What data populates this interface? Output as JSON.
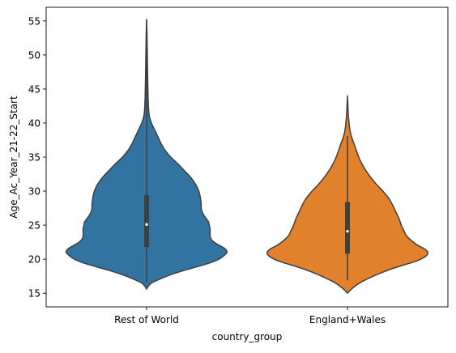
{
  "chart_data": {
    "type": "violin",
    "xlabel": "country_group",
    "ylabel": "Age_Ac_Year_21-22_Start",
    "ylim": [
      13.0,
      57.0
    ],
    "yticks": [
      15,
      20,
      25,
      30,
      35,
      40,
      45,
      50,
      55
    ],
    "ytick_labels": [
      "15",
      "20",
      "25",
      "30",
      "35",
      "40",
      "45",
      "50",
      "55"
    ],
    "grid": false,
    "categories": [
      "Rest of World",
      "England+Wales"
    ],
    "series": [
      {
        "category": "Rest of World",
        "color": "#3274a1",
        "range": [
          16.7,
          55.2
        ],
        "box": {
          "q1": 21.8,
          "median": 25.1,
          "q3": 29.4
        },
        "density_profile": [
          [
            15.6,
            0.0
          ],
          [
            16.0,
            0.02
          ],
          [
            16.5,
            0.06
          ],
          [
            17.0,
            0.15
          ],
          [
            17.5,
            0.25
          ],
          [
            18.0,
            0.37
          ],
          [
            18.5,
            0.51
          ],
          [
            19.0,
            0.66
          ],
          [
            19.5,
            0.8
          ],
          [
            20.0,
            0.9
          ],
          [
            20.5,
            0.96
          ],
          [
            21.0,
            1.0
          ],
          [
            21.5,
            0.98
          ],
          [
            22.0,
            0.91
          ],
          [
            22.5,
            0.84
          ],
          [
            23.0,
            0.8
          ],
          [
            23.5,
            0.79
          ],
          [
            24.0,
            0.79
          ],
          [
            24.5,
            0.79
          ],
          [
            25.0,
            0.78
          ],
          [
            25.5,
            0.77
          ],
          [
            26.0,
            0.74
          ],
          [
            26.5,
            0.71
          ],
          [
            27.0,
            0.69
          ],
          [
            27.5,
            0.68
          ],
          [
            28.0,
            0.68
          ],
          [
            29.0,
            0.67
          ],
          [
            30.0,
            0.65
          ],
          [
            31.0,
            0.61
          ],
          [
            32.0,
            0.55
          ],
          [
            33.0,
            0.47
          ],
          [
            34.0,
            0.39
          ],
          [
            35.0,
            0.3
          ],
          [
            36.0,
            0.23
          ],
          [
            37.0,
            0.18
          ],
          [
            38.0,
            0.14
          ],
          [
            39.0,
            0.1
          ],
          [
            40.0,
            0.06
          ],
          [
            41.0,
            0.035
          ],
          [
            42.0,
            0.025
          ],
          [
            44.0,
            0.018
          ],
          [
            47.0,
            0.013
          ],
          [
            50.0,
            0.009
          ],
          [
            53.0,
            0.005
          ],
          [
            55.2,
            0.0
          ]
        ]
      },
      {
        "category": "England+Wales",
        "color": "#e1812c",
        "range": [
          16.9,
          38.1
        ],
        "box": {
          "q1": 20.8,
          "median": 24.1,
          "q3": 28.4
        },
        "density_profile": [
          [
            15.0,
            0.0
          ],
          [
            15.5,
            0.04
          ],
          [
            16.0,
            0.09
          ],
          [
            16.5,
            0.15
          ],
          [
            17.0,
            0.23
          ],
          [
            17.5,
            0.32
          ],
          [
            18.0,
            0.42
          ],
          [
            18.5,
            0.53
          ],
          [
            19.0,
            0.66
          ],
          [
            19.5,
            0.8
          ],
          [
            20.0,
            0.91
          ],
          [
            20.5,
            0.98
          ],
          [
            21.0,
            1.0
          ],
          [
            21.5,
            0.96
          ],
          [
            22.0,
            0.88
          ],
          [
            22.5,
            0.82
          ],
          [
            23.0,
            0.77
          ],
          [
            23.5,
            0.73
          ],
          [
            24.0,
            0.71
          ],
          [
            24.5,
            0.69
          ],
          [
            25.0,
            0.67
          ],
          [
            26.0,
            0.64
          ],
          [
            27.0,
            0.6
          ],
          [
            28.0,
            0.56
          ],
          [
            29.0,
            0.51
          ],
          [
            30.0,
            0.44
          ],
          [
            31.0,
            0.36
          ],
          [
            32.0,
            0.29
          ],
          [
            33.0,
            0.23
          ],
          [
            34.0,
            0.18
          ],
          [
            35.0,
            0.14
          ],
          [
            36.0,
            0.11
          ],
          [
            37.0,
            0.08
          ],
          [
            38.0,
            0.05
          ],
          [
            39.0,
            0.03
          ],
          [
            40.0,
            0.02
          ],
          [
            41.0,
            0.012
          ],
          [
            42.0,
            0.008
          ],
          [
            43.0,
            0.004
          ],
          [
            44.0,
            0.0
          ]
        ]
      }
    ]
  }
}
